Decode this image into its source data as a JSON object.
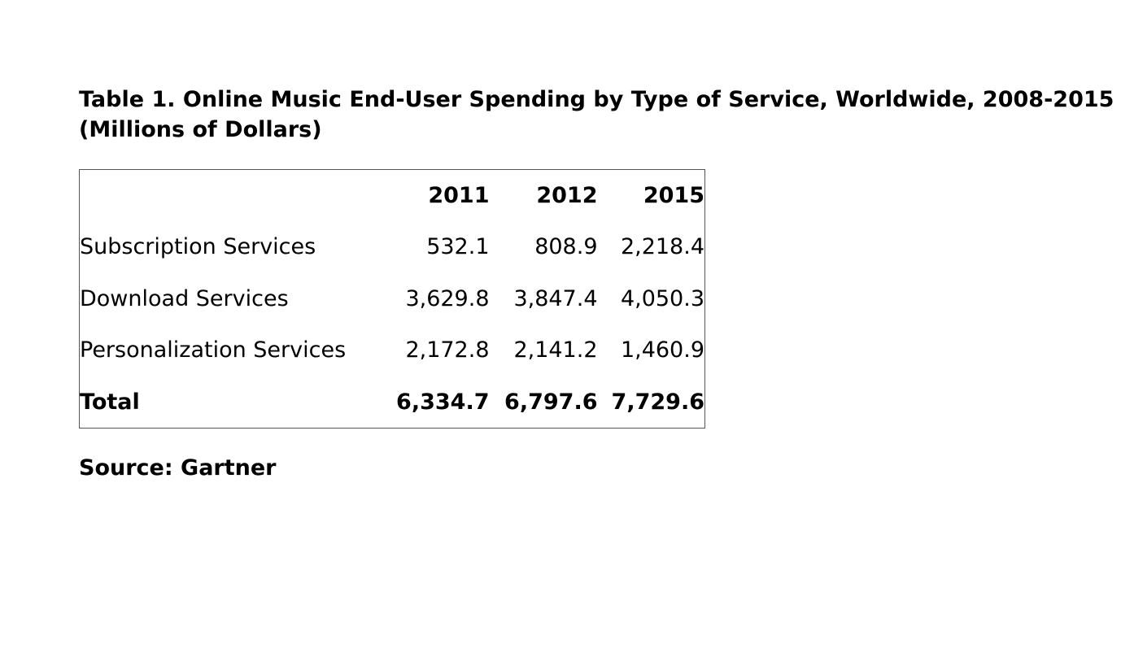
{
  "title": "Table 1. Online Music End-User Spending by Type of Service, Worldwide, 2008-2015 (Millions of Dollars)",
  "table": {
    "columns": [
      "2011",
      "2012",
      "2015"
    ],
    "rows": [
      {
        "label": "Subscription Services",
        "values": [
          "532.1",
          "808.9",
          "2,218.4"
        ]
      },
      {
        "label": "Download Services",
        "values": [
          "3,629.8",
          "3,847.4",
          "4,050.3"
        ]
      },
      {
        "label": "Personalization Services",
        "values": [
          "2,172.8",
          "2,141.2",
          "1,460.9"
        ]
      },
      {
        "label": "Total",
        "values": [
          "6,334.7",
          "6,797.6",
          "7,729.6"
        ],
        "bold": true
      }
    ]
  },
  "source": "Source: Gartner"
}
